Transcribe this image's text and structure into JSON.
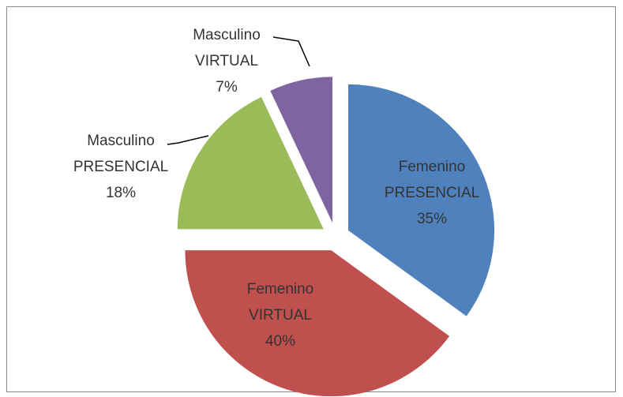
{
  "chart_data": {
    "type": "pie",
    "categories": [
      "Femenino PRESENCIAL",
      "Femenino VIRTUAL",
      "Masculino PRESENCIAL",
      "Masculino VIRTUAL"
    ],
    "values": [
      35,
      40,
      18,
      7
    ],
    "value_labels": [
      "35%",
      "40%",
      "18%",
      "7%"
    ],
    "colors": [
      "#4f81bd",
      "#c0504d",
      "#9bbb59",
      "#8064a2"
    ]
  }
}
